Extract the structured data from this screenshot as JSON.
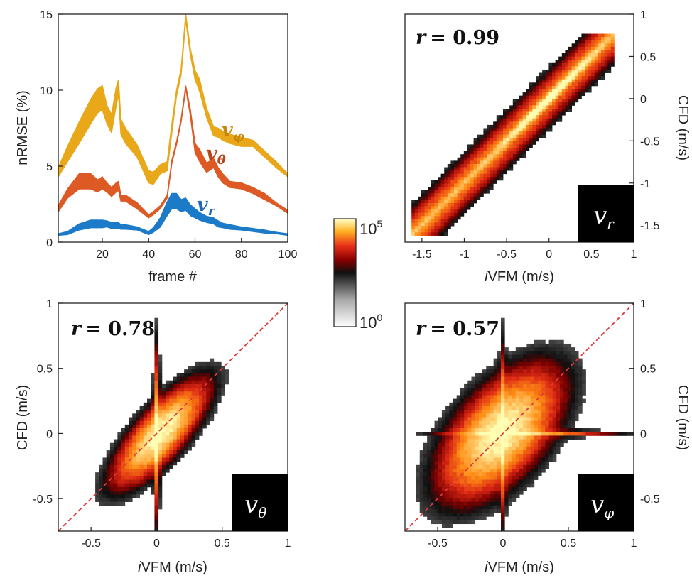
{
  "chart_data": [
    {
      "type": "line",
      "panel": "nrmse",
      "ylabel": "nRMSE (%)",
      "xlabel": "frame #",
      "xlim": [
        1,
        100
      ],
      "ylim": [
        0,
        15
      ],
      "xticks": [
        "20",
        "40",
        "60",
        "80",
        "100"
      ],
      "yticks": [
        "0",
        "5",
        "10",
        "15"
      ],
      "x": [
        1,
        5,
        10,
        15,
        18,
        20,
        22,
        24,
        26,
        27,
        28,
        30,
        35,
        40,
        42,
        45,
        48,
        50,
        52,
        54,
        56,
        58,
        60,
        62,
        65,
        68,
        70,
        72,
        75,
        80,
        85,
        90,
        95,
        100
      ],
      "series": [
        {
          "name": "v_φ",
          "label_main": "v",
          "label_sub": "φ",
          "color": "#E8A81A",
          "values": [
            4.6,
            5.8,
            7.2,
            8.6,
            9.3,
            9.5,
            8.4,
            7.8,
            9.6,
            10.2,
            7.6,
            7.0,
            6.0,
            4.3,
            4.2,
            4.8,
            5.0,
            7.5,
            9.8,
            11.2,
            14.8,
            12.5,
            11.0,
            10.3,
            8.5,
            7.3,
            7.2,
            7.0,
            6.8,
            6.6,
            6.5,
            5.8,
            5.1,
            4.4
          ],
          "band": [
            0.3,
            0.5,
            0.7,
            0.8,
            0.8,
            0.8,
            0.6,
            0.6,
            0.6,
            0.5,
            0.5,
            0.5,
            0.4,
            0.4,
            0.4,
            0.3,
            0.3,
            0.3,
            0.2,
            0.2,
            0.2,
            0.2,
            0.3,
            0.4,
            0.3,
            0.3,
            0.3,
            0.3,
            0.3,
            0.3,
            0.2,
            0.2,
            0.2,
            0.1
          ]
        },
        {
          "name": "v_θ",
          "label_main": "v",
          "label_sub": "θ",
          "color": "#DD5A24",
          "values": [
            2.2,
            3.2,
            4.0,
            4.0,
            3.7,
            3.9,
            3.6,
            3.3,
            3.6,
            3.7,
            2.9,
            2.9,
            2.4,
            1.7,
            1.9,
            2.3,
            3.0,
            5.3,
            6.5,
            8.0,
            10.2,
            8.5,
            6.2,
            5.7,
            4.9,
            5.2,
            4.6,
            4.2,
            3.8,
            3.7,
            3.4,
            3.0,
            2.5,
            2.0
          ],
          "band": [
            0.2,
            0.3,
            0.5,
            0.5,
            0.4,
            0.4,
            0.3,
            0.3,
            0.3,
            0.3,
            0.2,
            0.2,
            0.2,
            0.1,
            0.1,
            0.1,
            0.1,
            0.1,
            0.1,
            0.1,
            0.1,
            0.2,
            0.3,
            0.4,
            0.3,
            0.3,
            0.3,
            0.3,
            0.2,
            0.2,
            0.2,
            0.2,
            0.1,
            0.1
          ]
        },
        {
          "name": "v_r",
          "label_main": "v",
          "label_sub": "r",
          "color": "#1C7BC8",
          "values": [
            0.5,
            0.6,
            1.0,
            1.2,
            1.2,
            1.2,
            1.2,
            1.1,
            1.1,
            1.1,
            1.0,
            1.0,
            0.9,
            0.6,
            0.8,
            1.3,
            2.2,
            2.7,
            2.7,
            2.4,
            2.5,
            2.1,
            1.9,
            1.7,
            1.5,
            1.4,
            1.2,
            1.1,
            1.0,
            0.9,
            0.8,
            0.7,
            0.6,
            0.5
          ],
          "band": [
            0.05,
            0.1,
            0.2,
            0.25,
            0.25,
            0.25,
            0.2,
            0.2,
            0.2,
            0.2,
            0.15,
            0.15,
            0.1,
            0.1,
            0.15,
            0.3,
            0.45,
            0.5,
            0.5,
            0.4,
            0.4,
            0.35,
            0.3,
            0.25,
            0.2,
            0.2,
            0.2,
            0.15,
            0.15,
            0.1,
            0.1,
            0.1,
            0.05,
            0.05
          ]
        }
      ]
    },
    {
      "type": "heatmap",
      "panel": "vr",
      "r_label": "r",
      "r_value": "= 0.99",
      "corr": 0.99,
      "component_main": "v",
      "component_sub": "r",
      "xlabel_italic": "i",
      "xlabel": "VFM (m/s)",
      "ylabel": "CFD (m/s)",
      "xlim": [
        -1.7,
        1.0
      ],
      "ylim": [
        -1.7,
        1.0
      ],
      "xticks": [
        "-1.5",
        "-1",
        "-0.5",
        "0",
        "0.5",
        "1"
      ],
      "yticks": [
        "-1.5",
        "-1",
        "-0.5",
        "0",
        "0.5",
        "1"
      ],
      "identity_line": false
    },
    {
      "type": "heatmap",
      "panel": "vtheta",
      "r_label": "r",
      "r_value": "= 0.78",
      "corr": 0.78,
      "component_main": "v",
      "component_sub": "θ",
      "xlabel_italic": "i",
      "xlabel": "VFM (m/s)",
      "ylabel": "CFD (m/s)",
      "xlim": [
        -0.75,
        1.0
      ],
      "ylim": [
        -0.75,
        1.0
      ],
      "xticks": [
        "-0.5",
        "0",
        "0.5",
        "1"
      ],
      "yticks": [
        "-0.5",
        "0",
        "0.5",
        "1"
      ],
      "identity_line": true
    },
    {
      "type": "heatmap",
      "panel": "vphi",
      "r_label": "r",
      "r_value": "= 0.57",
      "corr": 0.57,
      "component_main": "v",
      "component_sub": "φ",
      "xlabel_italic": "i",
      "xlabel": "VFM (m/s)",
      "ylabel": "CFD (m/s)",
      "xlim": [
        -0.75,
        1.0
      ],
      "ylim": [
        -0.75,
        1.0
      ],
      "xticks": [
        "-0.5",
        "0",
        "0.5",
        "1"
      ],
      "yticks": [
        "-0.5",
        "0",
        "0.5",
        "1"
      ],
      "identity_line": true
    }
  ],
  "colorbar": {
    "max_base": "10",
    "max_exp": "5",
    "min_base": "10",
    "min_exp": "0"
  },
  "colors": {
    "identity_line": "#E03A3A",
    "density_high": "#FFFFA0",
    "density_mid": "#E4401A",
    "density_low": "#111111"
  }
}
